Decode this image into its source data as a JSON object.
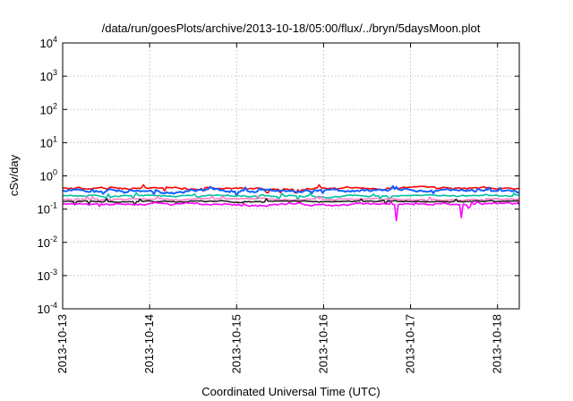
{
  "chart_data": {
    "type": "line",
    "title": "/data/run/goesPlots/archive/2013-10-18/05:00/flux/../bryn/5daysMoon.plot",
    "xlabel": "Coordinated Universal Time (UTC)",
    "ylabel": "cSv/day",
    "yscale": "log",
    "ylim": [
      0.0001,
      10000
    ],
    "y_ticks": [
      {
        "value": 0.0001,
        "base": "10",
        "exp": "-4"
      },
      {
        "value": 0.001,
        "base": "10",
        "exp": "-3"
      },
      {
        "value": 0.01,
        "base": "10",
        "exp": "-2"
      },
      {
        "value": 0.1,
        "base": "10",
        "exp": "-1"
      },
      {
        "value": 1,
        "base": "10",
        "exp": "0"
      },
      {
        "value": 10,
        "base": "10",
        "exp": "1"
      },
      {
        "value": 100,
        "base": "10",
        "exp": "2"
      },
      {
        "value": 1000,
        "base": "10",
        "exp": "3"
      },
      {
        "value": 10000,
        "base": "10",
        "exp": "4"
      }
    ],
    "xlim": [
      "2013-10-13T00:00",
      "2013-10-18T06:00"
    ],
    "x_ticks": [
      "2013-10-13",
      "2013-10-14",
      "2013-10-15",
      "2013-10-16",
      "2013-10-17",
      "2013-10-18"
    ],
    "grid": true,
    "series": [
      {
        "color": "#ff0000",
        "level": 0.42,
        "noise": 0.1,
        "dips": []
      },
      {
        "color": "#1060ff",
        "level": 0.36,
        "noise": 0.14,
        "dips": []
      },
      {
        "color": "#00c0a0",
        "level": 0.25,
        "noise": 0.08,
        "dips": []
      },
      {
        "color": "#ff80c0",
        "level": 0.2,
        "noise": 0.07,
        "dips": []
      },
      {
        "color": "#202020",
        "level": 0.17,
        "noise": 0.06,
        "dips": []
      },
      {
        "color": "#ff00ff",
        "level": 0.14,
        "noise": 0.1,
        "dips": [
          {
            "x": "2013-10-16T20:00",
            "y": 0.045
          },
          {
            "x": "2013-10-17T14:00",
            "y": 0.055
          }
        ]
      }
    ]
  }
}
